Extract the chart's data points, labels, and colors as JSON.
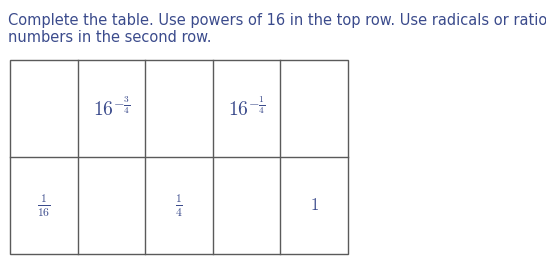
{
  "instruction_line1": "Complete the table. Use powers of 16 in the top row. Use radicals or rational",
  "instruction_line2": "numbers in the second row.",
  "text_color": "#3B4B8C",
  "table_edge_color": "#5A5A5A",
  "num_cols": 5,
  "num_rows": 2,
  "cell_contents": [
    [
      "",
      "16^{-\\frac{3}{4}}",
      "",
      "16^{-\\frac{1}{4}}",
      ""
    ],
    [
      "\\frac{1}{16}",
      "",
      "\\frac{1}{4}",
      "",
      "1"
    ]
  ],
  "cell_fontsizes": [
    [
      11,
      14,
      11,
      14,
      11
    ],
    [
      12,
      11,
      12,
      11,
      12
    ]
  ],
  "instruction_fontsize": 10.5,
  "fig_width": 5.46,
  "fig_height": 2.58,
  "dpi": 100
}
